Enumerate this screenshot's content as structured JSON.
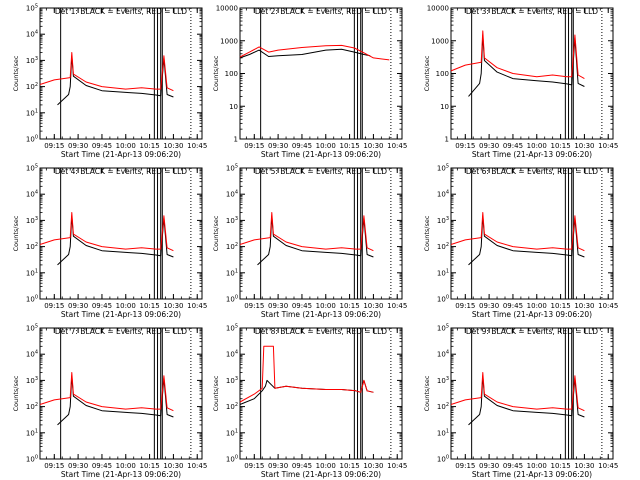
{
  "figure": {
    "background": "#ffffff",
    "axis_color": "#000000"
  },
  "chart_data": [
    {
      "type": "line",
      "title": "Det 1: BLACK = Events, RED = LLD",
      "xlabel": "Start Time (21-Apr-13 09:06:20)",
      "ylabel": "Counts/sec",
      "xlim": [
        "09:06",
        "10:48"
      ],
      "ylim": [
        1,
        100000
      ],
      "yscale": "log",
      "xticks": [
        "09:15",
        "09:30",
        "09:45",
        "10:00",
        "10:15",
        "10:30",
        "10:45"
      ],
      "yticks": [
        "10^0",
        "10^1",
        "10^2",
        "10^3",
        "10^4",
        "10^5"
      ],
      "vlines": [
        "09:19",
        "10:18",
        "10:20",
        "10:22",
        "10:23"
      ],
      "dotted_vline": "10:41",
      "series": [
        {
          "color": "#000000",
          "x": [
            "09:17",
            "09:24",
            "09:25",
            "09:26",
            "09:27",
            "09:35",
            "09:45",
            "10:00",
            "10:10",
            "10:19",
            "10:22",
            "10:24",
            "10:26",
            "10:30"
          ],
          "y": [
            20,
            50,
            100,
            1500,
            250,
            110,
            70,
            60,
            55,
            48,
            45,
            1200,
            50,
            40
          ]
        },
        {
          "color": "#ff0000",
          "x": [
            "09:06",
            "09:15",
            "09:25",
            "09:26",
            "09:27",
            "09:35",
            "09:45",
            "10:00",
            "10:10",
            "10:19",
            "10:22",
            "10:24",
            "10:26",
            "10:30"
          ],
          "y": [
            120,
            180,
            220,
            2000,
            300,
            150,
            100,
            80,
            90,
            80,
            80,
            1500,
            90,
            70
          ]
        }
      ]
    },
    {
      "type": "line",
      "title": "Det 2: BLACK = Events, RED = LLD",
      "xlabel": "Start Time (21-Apr-13 09:06:20)",
      "ylabel": "Counts/sec",
      "xlim": [
        "09:06",
        "10:48"
      ],
      "ylim": [
        1,
        10000
      ],
      "yscale": "log",
      "xticks": [
        "09:15",
        "09:30",
        "09:45",
        "10:00",
        "10:15",
        "10:30",
        "10:45"
      ],
      "yticks": [
        "1",
        "10",
        "100",
        "1000",
        "10000"
      ],
      "vlines": [
        "09:19",
        "10:18",
        "10:20",
        "10:22",
        "10:23"
      ],
      "dotted_vline": "10:41",
      "series": [
        {
          "color": "#000000",
          "x": [
            "09:06",
            "09:12",
            "09:18",
            "09:24",
            "09:30",
            "09:45",
            "10:00",
            "10:10",
            "10:18",
            "10:24",
            "10:28"
          ],
          "y": [
            300,
            380,
            520,
            330,
            350,
            380,
            520,
            550,
            450,
            380,
            350
          ]
        },
        {
          "color": "#ff0000",
          "x": [
            "09:06",
            "09:12",
            "09:18",
            "09:24",
            "09:30",
            "09:45",
            "10:00",
            "10:10",
            "10:18",
            "10:24",
            "10:30",
            "10:40"
          ],
          "y": [
            320,
            450,
            650,
            450,
            520,
            620,
            700,
            720,
            600,
            430,
            300,
            260
          ]
        }
      ]
    },
    {
      "type": "line",
      "title": "Det 3: BLACK = Events, RED = LLD",
      "xlabel": "Start Time (21-Apr-13 09:06:20)",
      "ylabel": "Counts/sec",
      "xlim": [
        "09:06",
        "10:48"
      ],
      "ylim": [
        1,
        10000
      ],
      "yscale": "log",
      "xticks": [
        "09:15",
        "09:30",
        "09:45",
        "10:00",
        "10:15",
        "10:30",
        "10:45"
      ],
      "yticks": [
        "1",
        "10",
        "100",
        "1000",
        "10000"
      ],
      "vlines": [
        "09:19",
        "10:18",
        "10:20",
        "10:22",
        "10:23"
      ],
      "dotted_vline": "10:41",
      "series": [
        {
          "color": "#000000",
          "x": [
            "09:17",
            "09:24",
            "09:25",
            "09:26",
            "09:27",
            "09:35",
            "09:45",
            "10:00",
            "10:10",
            "10:19",
            "10:22",
            "10:24",
            "10:26",
            "10:30"
          ],
          "y": [
            20,
            50,
            100,
            1500,
            250,
            110,
            70,
            60,
            55,
            48,
            45,
            1200,
            50,
            40
          ]
        },
        {
          "color": "#ff0000",
          "x": [
            "09:06",
            "09:15",
            "09:25",
            "09:26",
            "09:27",
            "09:35",
            "09:45",
            "10:00",
            "10:10",
            "10:19",
            "10:22",
            "10:24",
            "10:26",
            "10:30"
          ],
          "y": [
            120,
            180,
            220,
            2000,
            300,
            150,
            100,
            80,
            90,
            80,
            80,
            1500,
            90,
            70
          ]
        }
      ]
    },
    {
      "type": "line",
      "title": "Det 4: BLACK = Events, RED = LLD",
      "xlabel": "Start Time (21-Apr-13 09:06:20)",
      "ylabel": "Counts/sec",
      "xlim": [
        "09:06",
        "10:48"
      ],
      "ylim": [
        1,
        100000
      ],
      "yscale": "log",
      "xticks": [
        "09:15",
        "09:30",
        "09:45",
        "10:00",
        "10:15",
        "10:30",
        "10:45"
      ],
      "yticks": [
        "10^0",
        "10^1",
        "10^2",
        "10^3",
        "10^4",
        "10^5"
      ],
      "vlines": [
        "09:19",
        "10:18",
        "10:20",
        "10:22",
        "10:23"
      ],
      "dotted_vline": "10:41",
      "series": [
        {
          "color": "#000000",
          "x": [
            "09:17",
            "09:24",
            "09:25",
            "09:26",
            "09:27",
            "09:35",
            "09:45",
            "10:00",
            "10:10",
            "10:19",
            "10:22",
            "10:24",
            "10:26",
            "10:30"
          ],
          "y": [
            20,
            50,
            100,
            1500,
            250,
            110,
            70,
            60,
            55,
            48,
            45,
            1200,
            50,
            40
          ]
        },
        {
          "color": "#ff0000",
          "x": [
            "09:06",
            "09:15",
            "09:25",
            "09:26",
            "09:27",
            "09:35",
            "09:45",
            "10:00",
            "10:10",
            "10:19",
            "10:22",
            "10:24",
            "10:26",
            "10:30"
          ],
          "y": [
            120,
            180,
            220,
            2000,
            300,
            150,
            100,
            80,
            90,
            80,
            80,
            1500,
            90,
            70
          ]
        }
      ]
    },
    {
      "type": "line",
      "title": "Det 5: BLACK = Events, RED = LLD",
      "xlabel": "Start Time (21-Apr-13 09:06:20)",
      "ylabel": "Counts/sec",
      "xlim": [
        "09:06",
        "10:48"
      ],
      "ylim": [
        1,
        100000
      ],
      "yscale": "log",
      "xticks": [
        "09:15",
        "09:30",
        "09:45",
        "10:00",
        "10:15",
        "10:30",
        "10:45"
      ],
      "yticks": [
        "10^0",
        "10^1",
        "10^2",
        "10^3",
        "10^4",
        "10^5"
      ],
      "vlines": [
        "09:19",
        "10:18",
        "10:20",
        "10:22",
        "10:23"
      ],
      "dotted_vline": "10:41",
      "series": [
        {
          "color": "#000000",
          "x": [
            "09:17",
            "09:24",
            "09:25",
            "09:26",
            "09:27",
            "09:35",
            "09:45",
            "10:00",
            "10:10",
            "10:19",
            "10:22",
            "10:24",
            "10:26",
            "10:30"
          ],
          "y": [
            20,
            50,
            100,
            1500,
            250,
            110,
            70,
            60,
            55,
            48,
            45,
            1200,
            50,
            40
          ]
        },
        {
          "color": "#ff0000",
          "x": [
            "09:06",
            "09:15",
            "09:25",
            "09:26",
            "09:27",
            "09:35",
            "09:45",
            "10:00",
            "10:10",
            "10:19",
            "10:22",
            "10:24",
            "10:26",
            "10:30"
          ],
          "y": [
            120,
            180,
            220,
            2000,
            300,
            150,
            100,
            80,
            90,
            80,
            80,
            1500,
            90,
            70
          ]
        }
      ]
    },
    {
      "type": "line",
      "title": "Det 6: BLACK = Events, RED = LLD",
      "xlabel": "Start Time (21-Apr-13 09:06:20)",
      "ylabel": "Counts/sec",
      "xlim": [
        "09:06",
        "10:48"
      ],
      "ylim": [
        1,
        100000
      ],
      "yscale": "log",
      "xticks": [
        "09:15",
        "09:30",
        "09:45",
        "10:00",
        "10:15",
        "10:30",
        "10:45"
      ],
      "yticks": [
        "10^0",
        "10^1",
        "10^2",
        "10^3",
        "10^4",
        "10^5"
      ],
      "vlines": [
        "09:19",
        "10:18",
        "10:20",
        "10:22",
        "10:23"
      ],
      "dotted_vline": "10:41",
      "series": [
        {
          "color": "#000000",
          "x": [
            "09:17",
            "09:24",
            "09:25",
            "09:26",
            "09:27",
            "09:35",
            "09:45",
            "10:00",
            "10:10",
            "10:19",
            "10:22",
            "10:24",
            "10:26",
            "10:30"
          ],
          "y": [
            20,
            50,
            100,
            1500,
            250,
            110,
            70,
            60,
            55,
            48,
            45,
            1200,
            50,
            40
          ]
        },
        {
          "color": "#ff0000",
          "x": [
            "09:06",
            "09:15",
            "09:25",
            "09:26",
            "09:27",
            "09:35",
            "09:45",
            "10:00",
            "10:10",
            "10:19",
            "10:22",
            "10:24",
            "10:26",
            "10:30"
          ],
          "y": [
            120,
            180,
            220,
            2000,
            300,
            150,
            100,
            80,
            90,
            80,
            80,
            1500,
            90,
            70
          ]
        }
      ]
    },
    {
      "type": "line",
      "title": "Det 7: BLACK = Events, RED = LLD",
      "xlabel": "Start Time (21-Apr-13 09:06:20)",
      "ylabel": "Counts/sec",
      "xlim": [
        "09:06",
        "10:48"
      ],
      "ylim": [
        1,
        100000
      ],
      "yscale": "log",
      "xticks": [
        "09:15",
        "09:30",
        "09:45",
        "10:00",
        "10:15",
        "10:30",
        "10:45"
      ],
      "yticks": [
        "10^0",
        "10^1",
        "10^2",
        "10^3",
        "10^4",
        "10^5"
      ],
      "vlines": [
        "09:19",
        "10:18",
        "10:20",
        "10:22",
        "10:23"
      ],
      "dotted_vline": "10:41",
      "series": [
        {
          "color": "#000000",
          "x": [
            "09:17",
            "09:24",
            "09:25",
            "09:26",
            "09:27",
            "09:35",
            "09:45",
            "10:00",
            "10:10",
            "10:19",
            "10:22",
            "10:24",
            "10:26",
            "10:30"
          ],
          "y": [
            20,
            50,
            100,
            1500,
            250,
            110,
            70,
            60,
            55,
            48,
            45,
            1200,
            50,
            40
          ]
        },
        {
          "color": "#ff0000",
          "x": [
            "09:06",
            "09:15",
            "09:25",
            "09:26",
            "09:27",
            "09:35",
            "09:45",
            "10:00",
            "10:10",
            "10:19",
            "10:22",
            "10:24",
            "10:26",
            "10:30"
          ],
          "y": [
            120,
            180,
            220,
            2000,
            300,
            150,
            100,
            80,
            90,
            80,
            80,
            1500,
            90,
            70
          ]
        }
      ]
    },
    {
      "type": "line",
      "title": "Det 8: BLACK = Events, RED = LLD",
      "xlabel": "Start Time (21-Apr-13 09:06:20)",
      "ylabel": "Counts/sec",
      "xlim": [
        "09:06",
        "10:48"
      ],
      "ylim": [
        1,
        100000
      ],
      "yscale": "log",
      "xticks": [
        "09:15",
        "09:30",
        "09:45",
        "10:00",
        "10:15",
        "10:30",
        "10:45"
      ],
      "yticks": [
        "10^0",
        "10^1",
        "10^2",
        "10^3",
        "10^4",
        "10^5"
      ],
      "vlines": [
        "09:19",
        "10:18",
        "10:20",
        "10:22",
        "10:23"
      ],
      "dotted_vline": "10:41",
      "series": [
        {
          "color": "#000000",
          "x": [
            "09:06",
            "09:15",
            "09:20",
            "09:22",
            "09:23",
            "09:28",
            "09:35",
            "09:45",
            "10:00",
            "10:10",
            "10:19",
            "10:22",
            "10:24",
            "10:26",
            "10:30"
          ],
          "y": [
            120,
            200,
            400,
            600,
            1000,
            500,
            600,
            500,
            450,
            450,
            400,
            350,
            1000,
            400,
            350
          ]
        },
        {
          "color": "#ff0000",
          "x": [
            "09:06",
            "09:15",
            "09:20",
            "09:21",
            "09:27",
            "09:28",
            "09:35",
            "09:45",
            "10:00",
            "10:10",
            "10:19",
            "10:22",
            "10:24",
            "10:26",
            "10:30"
          ],
          "y": [
            150,
            300,
            500,
            20000,
            20000,
            500,
            600,
            500,
            450,
            450,
            400,
            350,
            1000,
            400,
            350
          ]
        }
      ]
    },
    {
      "type": "line",
      "title": "Det 9: BLACK = Events, RED = LLD",
      "xlabel": "Start Time (21-Apr-13 09:06:20)",
      "ylabel": "Counts/sec",
      "xlim": [
        "09:06",
        "10:48"
      ],
      "ylim": [
        1,
        100000
      ],
      "yscale": "log",
      "xticks": [
        "09:15",
        "09:30",
        "09:45",
        "10:00",
        "10:15",
        "10:30",
        "10:45"
      ],
      "yticks": [
        "10^0",
        "10^1",
        "10^2",
        "10^3",
        "10^4",
        "10^5"
      ],
      "vlines": [
        "09:19",
        "10:18",
        "10:20",
        "10:22",
        "10:23"
      ],
      "dotted_vline": "10:41",
      "series": [
        {
          "color": "#000000",
          "x": [
            "09:17",
            "09:24",
            "09:25",
            "09:26",
            "09:27",
            "09:35",
            "09:45",
            "10:00",
            "10:10",
            "10:19",
            "10:22",
            "10:24",
            "10:26",
            "10:30"
          ],
          "y": [
            20,
            50,
            100,
            1500,
            250,
            110,
            70,
            60,
            55,
            48,
            45,
            1200,
            50,
            40
          ]
        },
        {
          "color": "#ff0000",
          "x": [
            "09:06",
            "09:15",
            "09:25",
            "09:26",
            "09:27",
            "09:35",
            "09:45",
            "10:00",
            "10:10",
            "10:19",
            "10:22",
            "10:24",
            "10:26",
            "10:30"
          ],
          "y": [
            120,
            180,
            220,
            2000,
            300,
            150,
            100,
            80,
            90,
            80,
            80,
            1500,
            90,
            70
          ]
        }
      ]
    }
  ]
}
